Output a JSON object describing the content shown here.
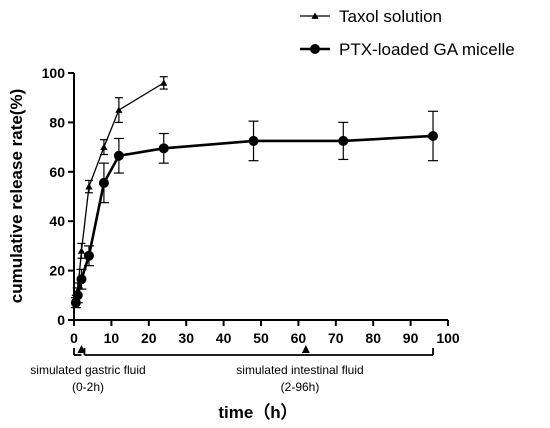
{
  "chart_data": {
    "type": "line",
    "xlabel": "time（h）",
    "ylabel": "cumulative release rate(%)",
    "xlim": [
      0,
      100
    ],
    "ylim": [
      0,
      100
    ],
    "xticks": [
      0,
      10,
      20,
      30,
      40,
      50,
      60,
      70,
      80,
      90,
      100
    ],
    "yticks": [
      0,
      20,
      40,
      60,
      80,
      100
    ],
    "legend_position": "top-right",
    "series": [
      {
        "name": "Taxol solution",
        "marker": "triangle",
        "line_width": "thin",
        "x": [
          0.5,
          1,
          2,
          4,
          8,
          12,
          24
        ],
        "y": [
          8,
          12,
          28,
          54,
          70,
          85,
          96
        ],
        "err": [
          2,
          3,
          3,
          2.5,
          3,
          5,
          2.5
        ]
      },
      {
        "name": "PTX-loaded GA micelle",
        "marker": "circle",
        "line_width": "thick",
        "x": [
          0.5,
          1,
          2,
          4,
          8,
          12,
          24,
          48,
          72,
          96
        ],
        "y": [
          7,
          10,
          16.5,
          26,
          55.5,
          66.5,
          69.5,
          72.5,
          72.5,
          74.5
        ],
        "err": [
          2,
          3,
          4,
          4,
          8,
          7,
          6,
          8,
          7.5,
          10
        ]
      }
    ],
    "annotations": [
      {
        "text_lines": [
          "simulated gastric fluid",
          "(0-2h)"
        ],
        "x_from": 0,
        "x_to": 2,
        "arrow_x": 2
      },
      {
        "text_lines": [
          "simulated intestinal fluid",
          "(2-96h)"
        ],
        "x_from": 2,
        "x_to": 96,
        "arrow_x": 62
      }
    ]
  }
}
